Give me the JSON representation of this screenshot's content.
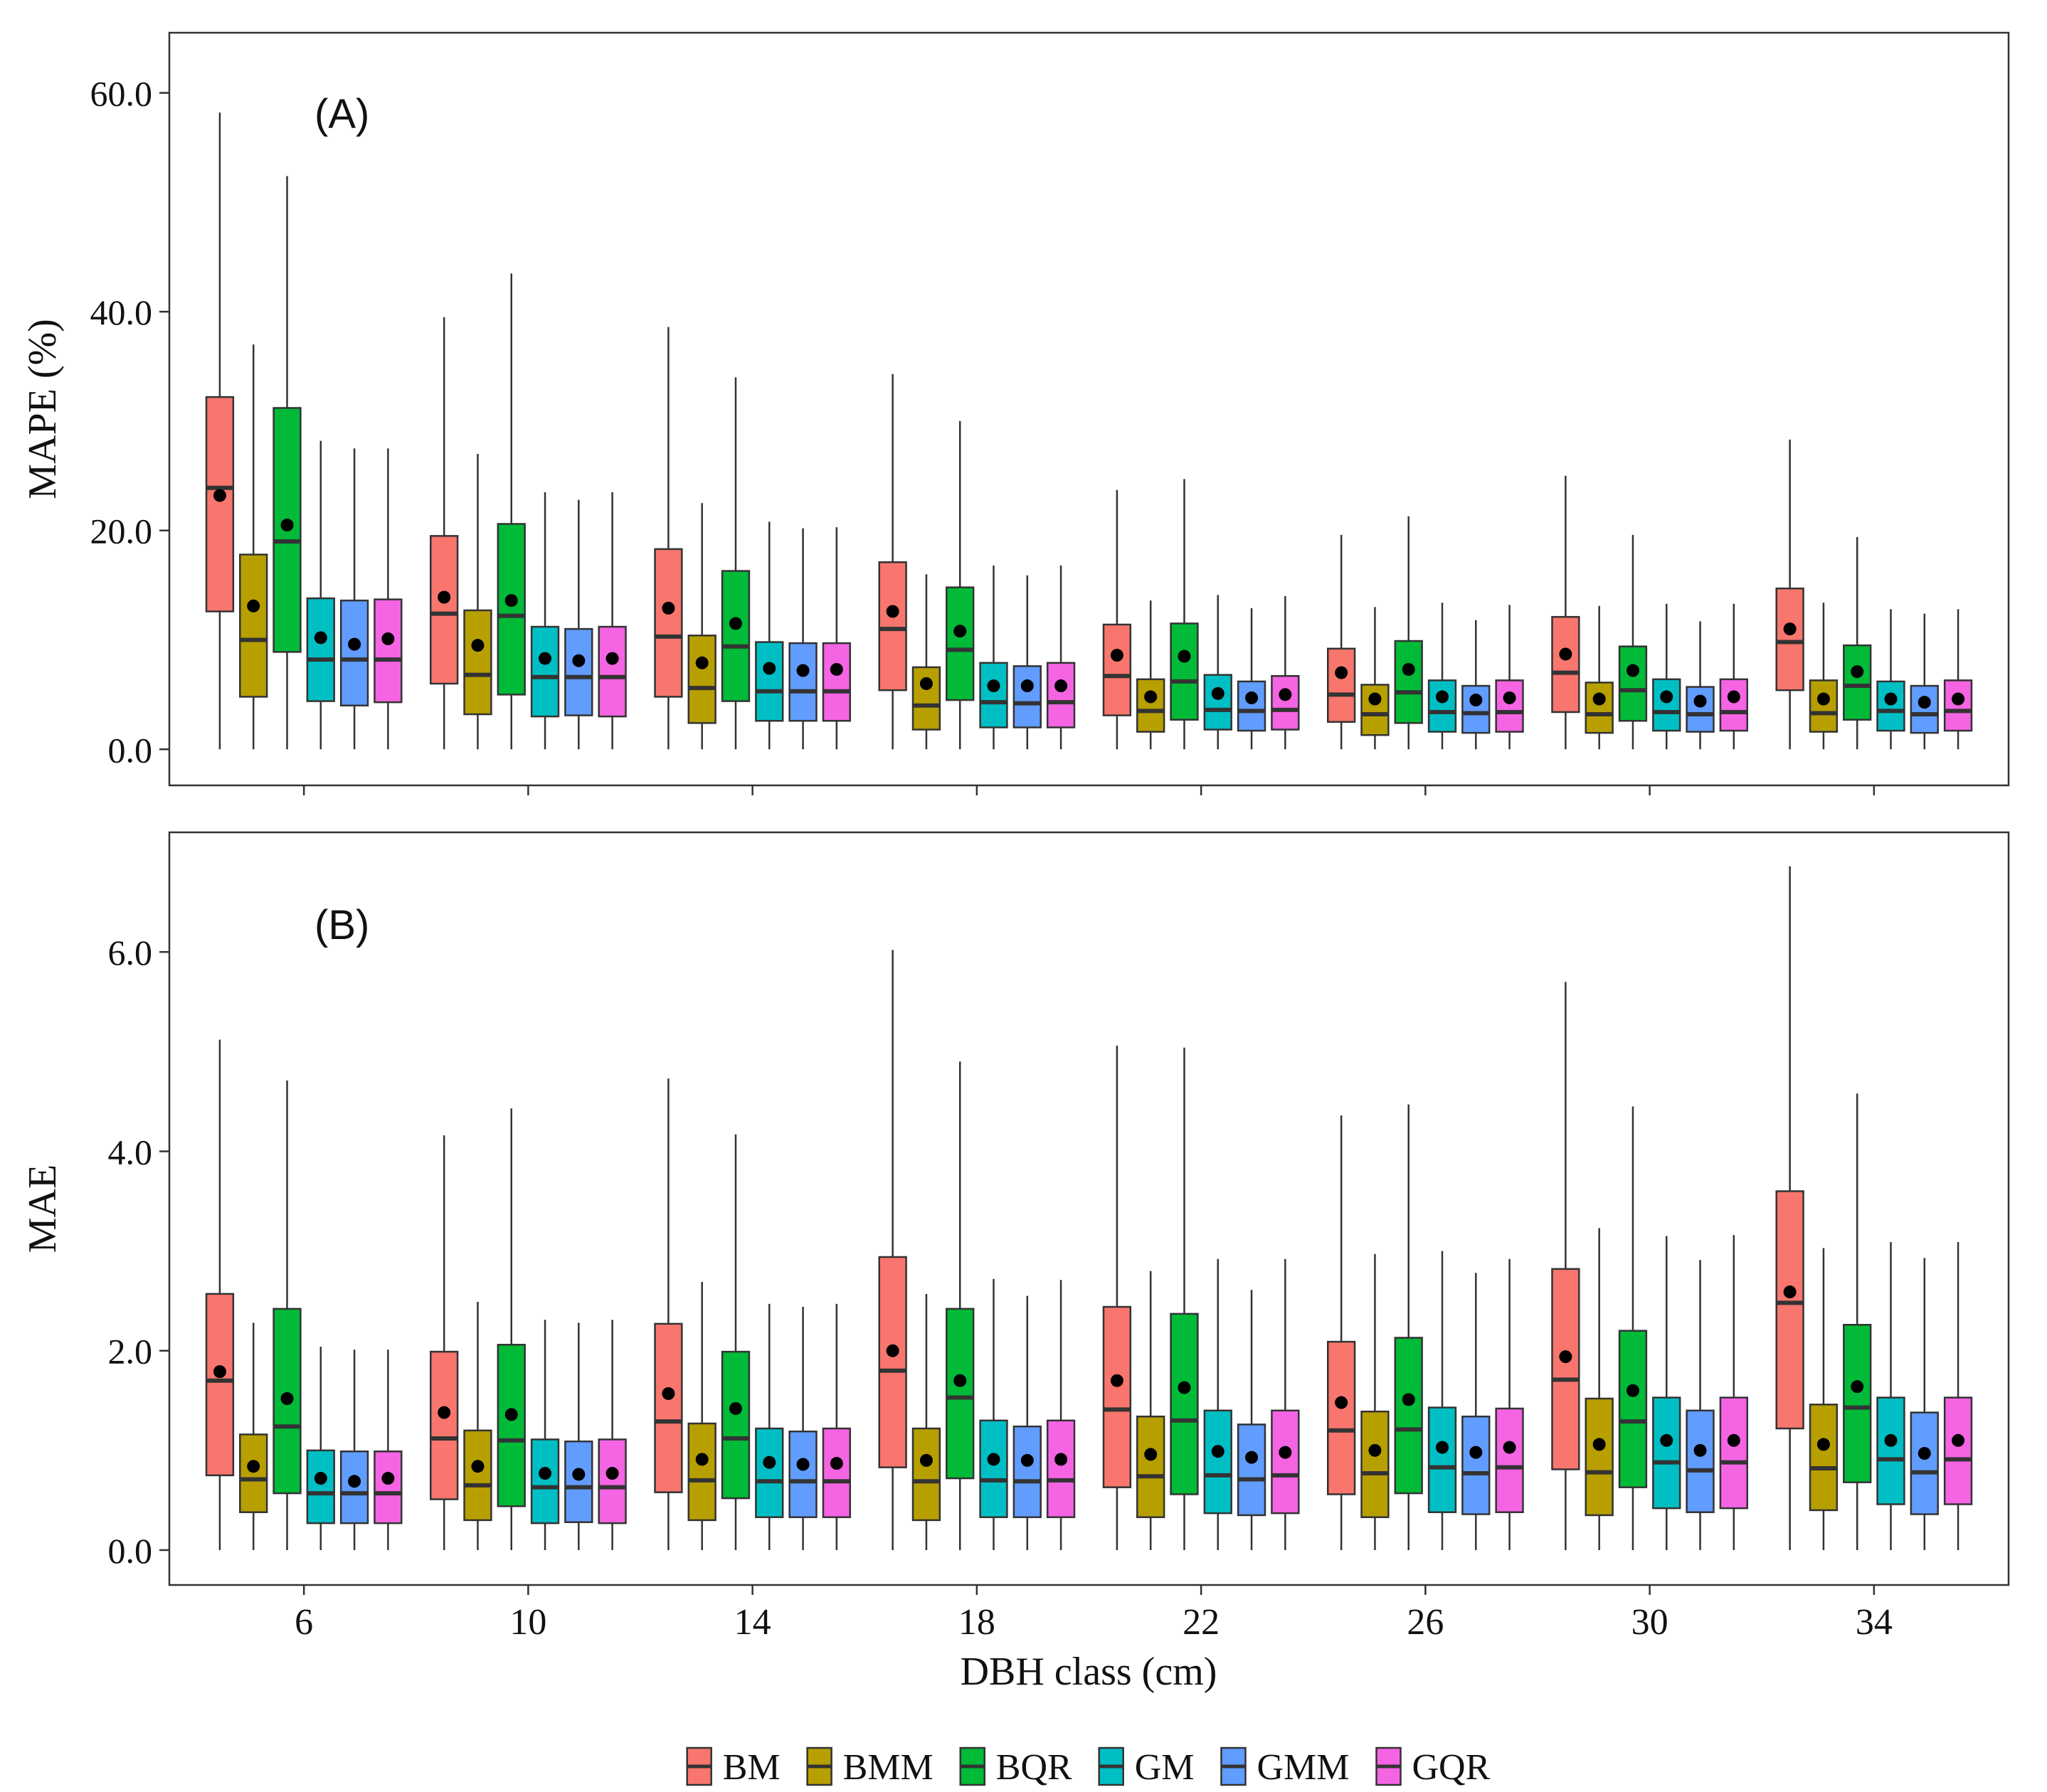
{
  "chart_data": {
    "type": "box",
    "legend_position": "bottom",
    "grid": false,
    "xlabel": "DBH class (cm)",
    "categories": [
      "6",
      "10",
      "14",
      "18",
      "22",
      "26",
      "30",
      "34"
    ],
    "series_names": [
      "BM",
      "BMM",
      "BQR",
      "GM",
      "GMM",
      "GQR"
    ],
    "colors": {
      "BM": "#F8766D",
      "BMM": "#B79F00",
      "BQR": "#00BA38",
      "GM": "#00BFC4",
      "GMM": "#619CFF",
      "GQR": "#F564E3"
    },
    "panels": [
      {
        "id": "A",
        "label": "(A)",
        "ylabel": "MAPE (%)",
        "ylim": [
          -3.3,
          65.5
        ],
        "yticks": [
          "0.0",
          "20.0",
          "40.0",
          "60.0"
        ],
        "ytick_values": [
          0,
          20,
          40,
          60
        ],
        "stats": [
          [
            [
              0,
              12.6,
              23.9,
              32.2,
              58.2,
              23.2
            ],
            [
              0,
              4.8,
              10.0,
              17.8,
              37.0,
              13.1
            ],
            [
              0,
              8.9,
              19.0,
              31.2,
              52.4,
              20.5
            ],
            [
              0,
              4.4,
              8.2,
              13.8,
              28.2,
              10.2
            ],
            [
              0,
              4.0,
              8.2,
              13.6,
              27.5,
              9.6
            ],
            [
              0,
              4.3,
              8.2,
              13.7,
              27.5,
              10.1
            ]
          ],
          [
            [
              0,
              6.0,
              12.4,
              19.5,
              39.5,
              13.9
            ],
            [
              0,
              3.2,
              6.8,
              12.7,
              27.0,
              9.5
            ],
            [
              0,
              5.0,
              12.2,
              20.6,
              43.5,
              13.6
            ],
            [
              0,
              3.0,
              6.6,
              11.2,
              23.5,
              8.3
            ],
            [
              0,
              3.1,
              6.6,
              11.0,
              22.8,
              8.1
            ],
            [
              0,
              3.0,
              6.6,
              11.2,
              23.5,
              8.3
            ]
          ],
          [
            [
              0,
              4.8,
              10.3,
              18.3,
              38.6,
              12.9
            ],
            [
              0,
              2.4,
              5.6,
              10.4,
              22.5,
              7.9
            ],
            [
              0,
              4.4,
              9.4,
              16.3,
              34.0,
              11.5
            ],
            [
              0,
              2.6,
              5.3,
              9.8,
              20.8,
              7.4
            ],
            [
              0,
              2.6,
              5.3,
              9.7,
              20.2,
              7.2
            ],
            [
              0,
              2.6,
              5.3,
              9.7,
              20.3,
              7.3
            ]
          ],
          [
            [
              0,
              5.4,
              11.0,
              17.1,
              34.3,
              12.6
            ],
            [
              0,
              1.8,
              4.0,
              7.5,
              16.0,
              6.0
            ],
            [
              0,
              4.5,
              9.1,
              14.8,
              30.0,
              10.8
            ],
            [
              0,
              2.0,
              4.3,
              7.9,
              16.8,
              5.8
            ],
            [
              0,
              2.0,
              4.2,
              7.6,
              15.9,
              5.8
            ],
            [
              0,
              2.0,
              4.3,
              7.9,
              16.8,
              5.8
            ]
          ],
          [
            [
              0,
              3.1,
              6.7,
              11.4,
              23.7,
              8.6
            ],
            [
              0,
              1.6,
              3.5,
              6.4,
              13.6,
              4.8
            ],
            [
              0,
              2.7,
              6.2,
              11.5,
              24.7,
              8.5
            ],
            [
              0,
              1.8,
              3.6,
              6.8,
              14.1,
              5.1
            ],
            [
              0,
              1.7,
              3.5,
              6.2,
              12.9,
              4.7
            ],
            [
              0,
              1.8,
              3.6,
              6.7,
              14.0,
              5.0
            ]
          ],
          [
            [
              0,
              2.5,
              5.0,
              9.2,
              19.6,
              7.0
            ],
            [
              0,
              1.3,
              3.2,
              5.9,
              13.0,
              4.6
            ],
            [
              0,
              2.4,
              5.2,
              9.9,
              21.3,
              7.3
            ],
            [
              0,
              1.6,
              3.4,
              6.3,
              13.4,
              4.8
            ],
            [
              0,
              1.5,
              3.3,
              5.8,
              11.8,
              4.5
            ],
            [
              0,
              1.6,
              3.4,
              6.3,
              13.2,
              4.7
            ]
          ],
          [
            [
              0,
              3.4,
              7.0,
              12.1,
              25.0,
              8.7
            ],
            [
              0,
              1.5,
              3.2,
              6.1,
              13.1,
              4.6
            ],
            [
              0,
              2.6,
              5.4,
              9.4,
              19.6,
              7.2
            ],
            [
              0,
              1.7,
              3.4,
              6.4,
              13.3,
              4.8
            ],
            [
              0,
              1.6,
              3.2,
              5.7,
              11.7,
              4.4
            ],
            [
              0,
              1.7,
              3.4,
              6.4,
              13.3,
              4.8
            ]
          ],
          [
            [
              0,
              5.4,
              9.8,
              14.7,
              28.3,
              11.0
            ],
            [
              0,
              1.6,
              3.3,
              6.3,
              13.4,
              4.6
            ],
            [
              0,
              2.7,
              5.8,
              9.5,
              19.4,
              7.1
            ],
            [
              0,
              1.7,
              3.5,
              6.2,
              12.8,
              4.6
            ],
            [
              0,
              1.5,
              3.2,
              5.8,
              12.4,
              4.3
            ],
            [
              0,
              1.7,
              3.5,
              6.3,
              12.8,
              4.6
            ]
          ]
        ]
      },
      {
        "id": "B",
        "label": "(B)",
        "ylabel": "MAE",
        "ylim": [
          -0.35,
          7.2
        ],
        "yticks": [
          "0.0",
          "2.0",
          "4.0",
          "6.0"
        ],
        "ytick_values": [
          0,
          2,
          4,
          6
        ],
        "stats": [
          [
            [
              0,
              0.75,
              1.7,
              2.57,
              5.12,
              1.79
            ],
            [
              0,
              0.38,
              0.71,
              1.16,
              2.28,
              0.84
            ],
            [
              0,
              0.57,
              1.24,
              2.42,
              4.71,
              1.52
            ],
            [
              0,
              0.27,
              0.57,
              1.0,
              2.04,
              0.72
            ],
            [
              0,
              0.27,
              0.57,
              0.99,
              2.01,
              0.69
            ],
            [
              0,
              0.27,
              0.57,
              0.99,
              2.01,
              0.72
            ]
          ],
          [
            [
              0,
              0.51,
              1.12,
              1.99,
              4.16,
              1.38
            ],
            [
              0,
              0.3,
              0.65,
              1.2,
              2.49,
              0.84
            ],
            [
              0,
              0.44,
              1.1,
              2.06,
              4.43,
              1.36
            ],
            [
              0,
              0.27,
              0.63,
              1.11,
              2.31,
              0.77
            ],
            [
              0,
              0.28,
              0.63,
              1.09,
              2.28,
              0.76
            ],
            [
              0,
              0.27,
              0.63,
              1.11,
              2.31,
              0.77
            ]
          ],
          [
            [
              0,
              0.58,
              1.29,
              2.27,
              4.73,
              1.57
            ],
            [
              0,
              0.3,
              0.7,
              1.27,
              2.69,
              0.91
            ],
            [
              0,
              0.52,
              1.12,
              1.99,
              4.17,
              1.42
            ],
            [
              0,
              0.33,
              0.69,
              1.22,
              2.47,
              0.88
            ],
            [
              0,
              0.33,
              0.69,
              1.19,
              2.44,
              0.86
            ],
            [
              0,
              0.33,
              0.69,
              1.22,
              2.47,
              0.87
            ]
          ],
          [
            [
              0,
              0.83,
              1.8,
              2.94,
              6.02,
              2.0
            ],
            [
              0,
              0.3,
              0.69,
              1.22,
              2.57,
              0.9
            ],
            [
              0,
              0.72,
              1.53,
              2.42,
              4.9,
              1.7
            ],
            [
              0,
              0.33,
              0.7,
              1.3,
              2.72,
              0.91
            ],
            [
              0,
              0.33,
              0.69,
              1.24,
              2.55,
              0.9
            ],
            [
              0,
              0.33,
              0.7,
              1.3,
              2.71,
              0.91
            ]
          ],
          [
            [
              0,
              0.63,
              1.41,
              2.44,
              5.06,
              1.7
            ],
            [
              0,
              0.33,
              0.74,
              1.34,
              2.8,
              0.96
            ],
            [
              0,
              0.56,
              1.3,
              2.37,
              5.04,
              1.63
            ],
            [
              0,
              0.37,
              0.75,
              1.4,
              2.92,
              0.99
            ],
            [
              0,
              0.35,
              0.71,
              1.26,
              2.61,
              0.93
            ],
            [
              0,
              0.37,
              0.75,
              1.4,
              2.92,
              0.98
            ]
          ],
          [
            [
              0,
              0.56,
              1.2,
              2.09,
              4.36,
              1.48
            ],
            [
              0,
              0.33,
              0.77,
              1.39,
              2.97,
              1.0
            ],
            [
              0,
              0.57,
              1.21,
              2.13,
              4.47,
              1.51
            ],
            [
              0,
              0.38,
              0.83,
              1.43,
              3.0,
              1.03
            ],
            [
              0,
              0.36,
              0.77,
              1.34,
              2.78,
              0.98
            ],
            [
              0,
              0.38,
              0.83,
              1.42,
              2.92,
              1.03
            ]
          ],
          [
            [
              0,
              0.81,
              1.71,
              2.82,
              5.7,
              1.94
            ],
            [
              0,
              0.35,
              0.78,
              1.52,
              3.23,
              1.06
            ],
            [
              0,
              0.63,
              1.29,
              2.2,
              4.45,
              1.6
            ],
            [
              0,
              0.42,
              0.88,
              1.53,
              3.15,
              1.1
            ],
            [
              0,
              0.38,
              0.8,
              1.4,
              2.91,
              1.0
            ],
            [
              0,
              0.42,
              0.88,
              1.53,
              3.16,
              1.1
            ]
          ],
          [
            [
              0,
              1.22,
              2.48,
              3.6,
              6.86,
              2.59
            ],
            [
              0,
              0.4,
              0.82,
              1.46,
              3.03,
              1.06
            ],
            [
              0,
              0.68,
              1.43,
              2.26,
              4.58,
              1.64
            ],
            [
              0,
              0.46,
              0.91,
              1.53,
              3.09,
              1.1
            ],
            [
              0,
              0.36,
              0.78,
              1.38,
              2.93,
              0.97
            ],
            [
              0,
              0.46,
              0.91,
              1.53,
              3.09,
              1.1
            ]
          ]
        ]
      }
    ]
  }
}
